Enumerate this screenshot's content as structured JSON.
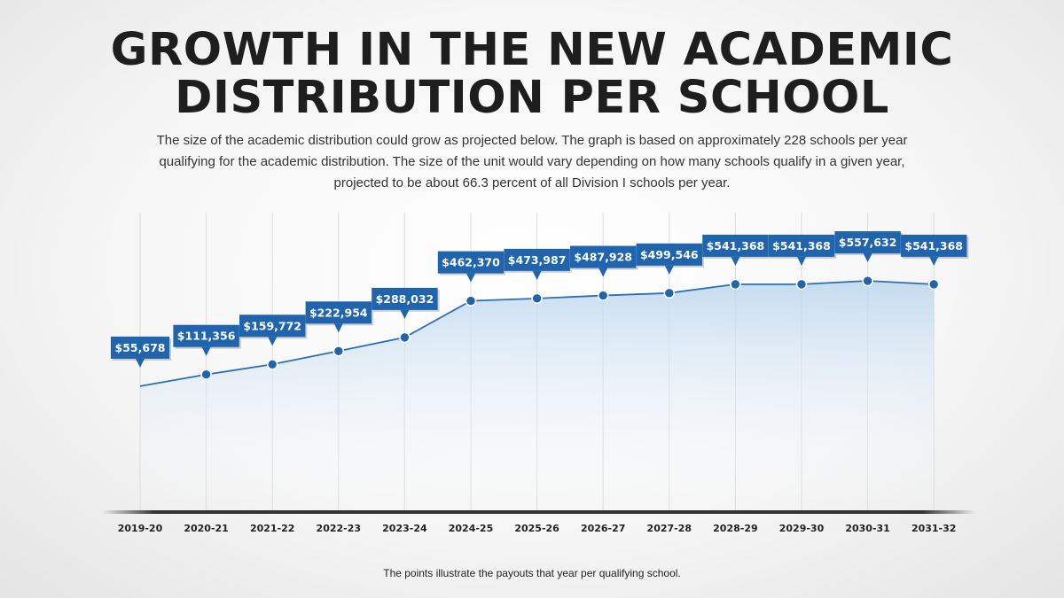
{
  "title_line1": "GROWTH IN THE NEW ACADEMIC",
  "title_line2": "DISTRIBUTION PER SCHOOL",
  "subtitle": "The size of the academic distribution could grow as projected below. The graph is based on approximately 228 schools per year qualifying for the academic distribution. The size of the unit would vary depending on how many schools qualify in a given year, projected to be about 66.3 percent of all Division I schools per year.",
  "footnote": "The points illustrate the payouts that year per qualifying school.",
  "colors": {
    "accent": "#1f64ad",
    "line": "#2b6fb8",
    "axis": "#333333",
    "area": "#bcd6ee"
  },
  "chart_data": {
    "type": "line",
    "title": "GROWTH IN THE NEW ACADEMIC DISTRIBUTION PER SCHOOL",
    "xlabel": "",
    "ylabel": "",
    "grid": "vertical",
    "categories": [
      "2019-20",
      "2020-21",
      "2021-22",
      "2022-23",
      "2023-24",
      "2024-25",
      "2025-26",
      "2026-27",
      "2027-28",
      "2028-29",
      "2029-30",
      "2030-31",
      "2031-32"
    ],
    "values": [
      55678,
      111356,
      159772,
      222954,
      288032,
      462370,
      473987,
      487928,
      499546,
      541368,
      541368,
      557632,
      541368
    ],
    "labels": [
      "$55,678",
      "$111,356",
      "$159,772",
      "$222,954",
      "$288,032",
      "$462,370",
      "$473,987",
      "$487,928",
      "$499,546",
      "$541,368",
      "$541,368",
      "$557,632",
      "$541,368"
    ],
    "ylim": [
      -540000,
      600000
    ]
  }
}
